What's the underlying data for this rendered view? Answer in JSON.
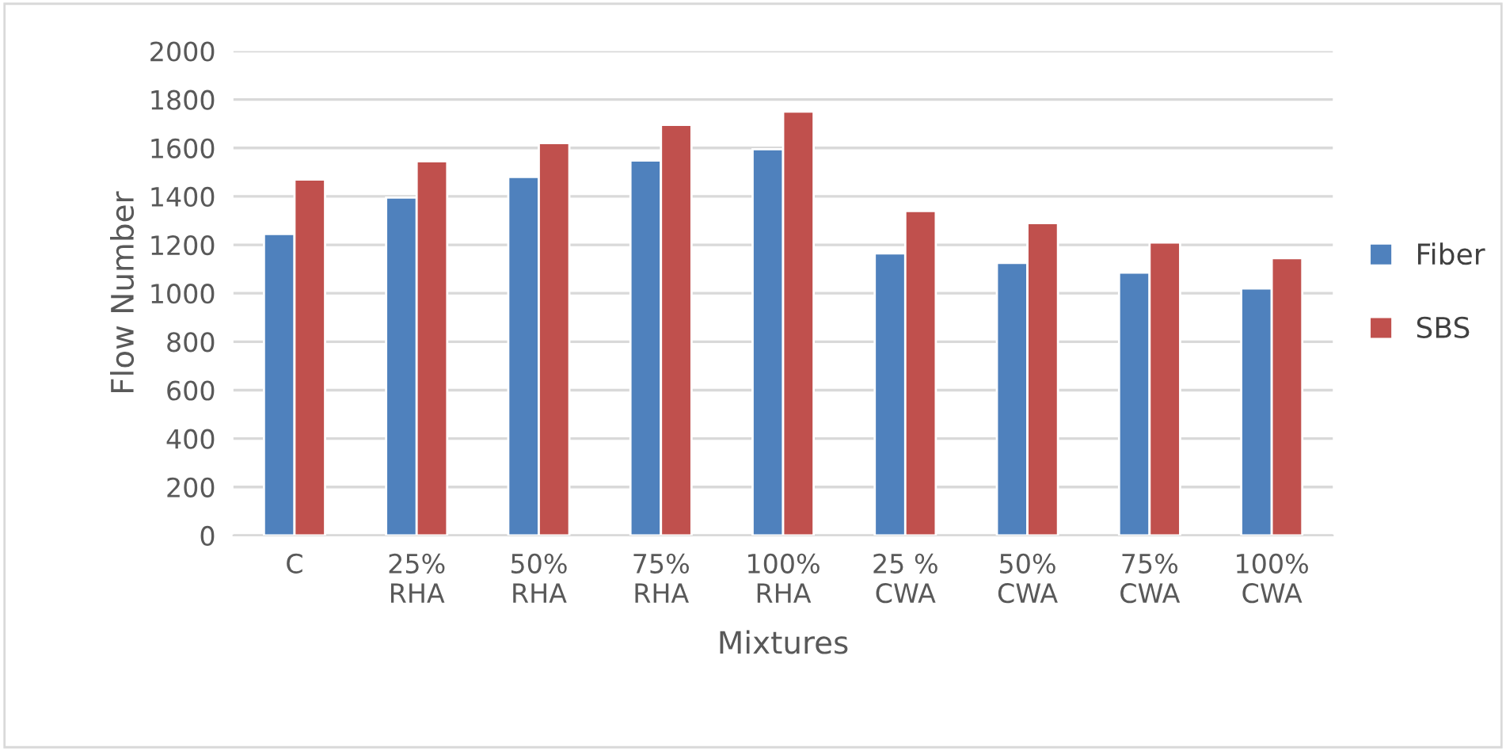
{
  "chart_data": {
    "type": "bar",
    "xlabel": "Mixtures",
    "ylabel": "Flow Number",
    "categories": [
      "C",
      "25%\nRHA",
      "50%\nRHA",
      "75%\nRHA",
      "100%\nRHA",
      "25 %\nCWA",
      "50%\nCWA",
      "75%\nCWA",
      "100%\nCWA"
    ],
    "series": [
      {
        "name": "Fiber",
        "color": "#4f81bd",
        "values": [
          1245,
          1395,
          1480,
          1548,
          1595,
          1165,
          1125,
          1085,
          1020
        ]
      },
      {
        "name": "SBS",
        "color": "#c0504d",
        "values": [
          1470,
          1545,
          1620,
          1695,
          1750,
          1340,
          1290,
          1210,
          1145
        ]
      }
    ],
    "ylim": [
      0,
      2000
    ],
    "yticks": [
      0,
      200,
      400,
      600,
      800,
      1000,
      1200,
      1400,
      1600,
      1800,
      2000
    ],
    "grid": "y",
    "legend": "right"
  }
}
